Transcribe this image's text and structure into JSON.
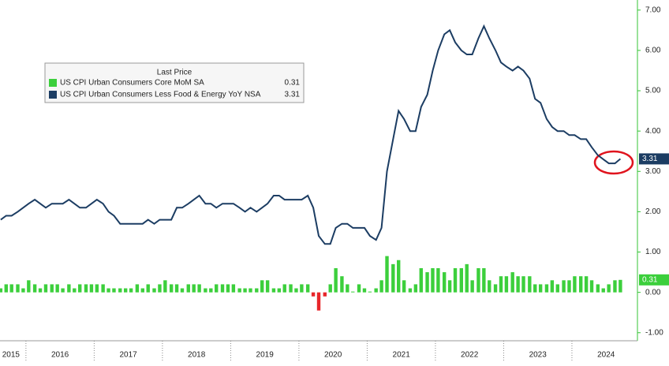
{
  "chart_data": {
    "type": "line-bar",
    "legend_title": "Last Price",
    "x": [
      2015.63,
      2015.71,
      2015.79,
      2015.88,
      2015.96,
      2016.04,
      2016.13,
      2016.21,
      2016.29,
      2016.38,
      2016.46,
      2016.54,
      2016.63,
      2016.71,
      2016.79,
      2016.88,
      2016.96,
      2017.04,
      2017.13,
      2017.21,
      2017.29,
      2017.38,
      2017.46,
      2017.54,
      2017.63,
      2017.71,
      2017.79,
      2017.88,
      2017.96,
      2018.04,
      2018.13,
      2018.21,
      2018.29,
      2018.38,
      2018.46,
      2018.54,
      2018.63,
      2018.71,
      2018.79,
      2018.88,
      2018.96,
      2019.04,
      2019.13,
      2019.21,
      2019.29,
      2019.38,
      2019.46,
      2019.54,
      2019.63,
      2019.71,
      2019.79,
      2019.88,
      2019.96,
      2020.04,
      2020.13,
      2020.21,
      2020.29,
      2020.38,
      2020.46,
      2020.54,
      2020.63,
      2020.71,
      2020.79,
      2020.88,
      2020.96,
      2021.04,
      2021.13,
      2021.21,
      2021.29,
      2021.38,
      2021.46,
      2021.54,
      2021.63,
      2021.71,
      2021.79,
      2021.88,
      2021.96,
      2022.04,
      2022.13,
      2022.21,
      2022.29,
      2022.38,
      2022.46,
      2022.54,
      2022.63,
      2022.71,
      2022.79,
      2022.88,
      2022.96,
      2023.04,
      2023.13,
      2023.21,
      2023.29,
      2023.38,
      2023.46,
      2023.54,
      2023.63,
      2023.71,
      2023.79,
      2023.88,
      2023.96,
      2024.04,
      2024.13,
      2024.21,
      2024.29,
      2024.38,
      2024.46,
      2024.54,
      2024.63,
      2024.71
    ],
    "series": [
      {
        "name": "US CPI Urban Consumers Core MoM SA",
        "kind": "bar",
        "color": "#3ccf3c",
        "negative_color": "#e8262a",
        "values": [
          0.1,
          0.2,
          0.2,
          0.2,
          0.1,
          0.3,
          0.2,
          0.1,
          0.2,
          0.2,
          0.2,
          0.1,
          0.2,
          0.1,
          0.2,
          0.2,
          0.2,
          0.2,
          0.2,
          0.1,
          0.1,
          0.1,
          0.1,
          0.1,
          0.2,
          0.1,
          0.2,
          0.1,
          0.2,
          0.3,
          0.2,
          0.2,
          0.1,
          0.2,
          0.2,
          0.2,
          0.1,
          0.1,
          0.2,
          0.2,
          0.2,
          0.2,
          0.1,
          0.1,
          0.1,
          0.1,
          0.3,
          0.3,
          0.1,
          0.1,
          0.2,
          0.2,
          0.1,
          0.2,
          0.2,
          -0.1,
          -0.45,
          -0.1,
          0.2,
          0.6,
          0.4,
          0.2,
          0.02,
          0.2,
          0.1,
          0.02,
          0.1,
          0.3,
          0.9,
          0.7,
          0.8,
          0.3,
          0.1,
          0.2,
          0.6,
          0.5,
          0.6,
          0.6,
          0.5,
          0.3,
          0.6,
          0.6,
          0.7,
          0.3,
          0.6,
          0.6,
          0.3,
          0.2,
          0.4,
          0.4,
          0.5,
          0.4,
          0.4,
          0.4,
          0.2,
          0.2,
          0.2,
          0.3,
          0.2,
          0.3,
          0.3,
          0.4,
          0.4,
          0.4,
          0.3,
          0.2,
          0.1,
          0.2,
          0.3,
          0.31
        ]
      },
      {
        "name": "US CPI Urban Consumers Less Food & Energy YoY NSA",
        "kind": "line",
        "color": "#1c3d63",
        "values": [
          1.8,
          1.9,
          1.9,
          2.0,
          2.1,
          2.2,
          2.3,
          2.2,
          2.1,
          2.2,
          2.2,
          2.2,
          2.3,
          2.2,
          2.1,
          2.1,
          2.2,
          2.3,
          2.2,
          2.0,
          1.9,
          1.7,
          1.7,
          1.7,
          1.7,
          1.7,
          1.8,
          1.7,
          1.8,
          1.8,
          1.8,
          2.1,
          2.1,
          2.2,
          2.3,
          2.4,
          2.2,
          2.2,
          2.1,
          2.2,
          2.2,
          2.2,
          2.1,
          2.0,
          2.1,
          2.0,
          2.1,
          2.2,
          2.4,
          2.4,
          2.3,
          2.3,
          2.3,
          2.3,
          2.4,
          2.1,
          1.4,
          1.2,
          1.2,
          1.6,
          1.7,
          1.7,
          1.6,
          1.6,
          1.6,
          1.4,
          1.3,
          1.6,
          3.0,
          3.8,
          4.5,
          4.3,
          4.0,
          4.0,
          4.6,
          4.9,
          5.5,
          6.0,
          6.4,
          6.5,
          6.2,
          6.0,
          5.9,
          5.9,
          6.3,
          6.6,
          6.3,
          6.0,
          5.7,
          5.6,
          5.5,
          5.6,
          5.5,
          5.3,
          4.8,
          4.7,
          4.3,
          4.1,
          4.0,
          4.0,
          3.9,
          3.9,
          3.8,
          3.8,
          3.6,
          3.4,
          3.3,
          3.2,
          3.2,
          3.31
        ]
      }
    ],
    "xlim": [
      2015.62,
      2024.96
    ],
    "xticks": [
      {
        "value": 2015.78,
        "label": "2015"
      },
      {
        "value": 2016.5,
        "label": "2016"
      },
      {
        "value": 2017.5,
        "label": "2017"
      },
      {
        "value": 2018.5,
        "label": "2018"
      },
      {
        "value": 2019.5,
        "label": "2019"
      },
      {
        "value": 2020.5,
        "label": "2020"
      },
      {
        "value": 2021.5,
        "label": "2021"
      },
      {
        "value": 2022.5,
        "label": "2022"
      },
      {
        "value": 2023.5,
        "label": "2023"
      },
      {
        "value": 2024.5,
        "label": "2024"
      }
    ],
    "ylim": [
      -1.2,
      7.25
    ],
    "yticks": [
      {
        "value": -1,
        "label": "-1.00"
      },
      {
        "value": 0,
        "label": "0.00"
      },
      {
        "value": 1,
        "label": "1.00"
      },
      {
        "value": 2,
        "label": "2.00"
      },
      {
        "value": 3,
        "label": "3.00"
      },
      {
        "value": 4,
        "label": "4.00"
      },
      {
        "value": 5,
        "label": "5.00"
      },
      {
        "value": 6,
        "label": "6.00"
      },
      {
        "value": 7,
        "label": "7.00"
      }
    ],
    "y_axis_side": "right",
    "grid": false
  }
}
